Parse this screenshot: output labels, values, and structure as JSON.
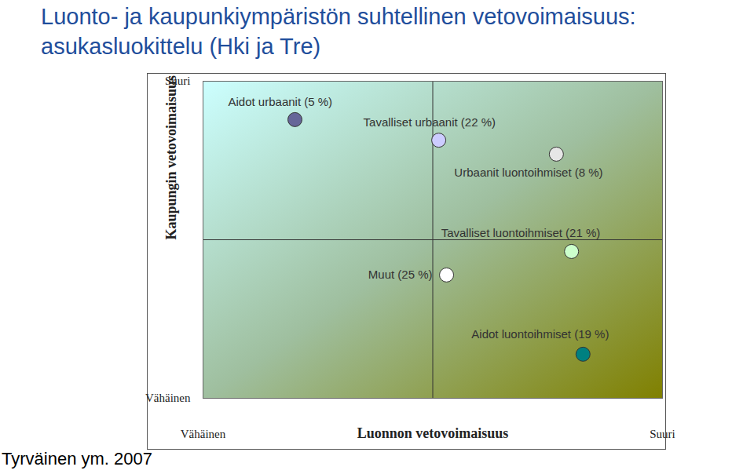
{
  "chart_data": {
    "type": "scatter",
    "title": "Luonto- ja kaupunkiympäristön suhtellinen vetovoimaisuus: asukasluokittelu (Hki ja Tre)",
    "source": "Tyrväinen ym. 2007",
    "x_label": "Luonnon vetovoimaisuus",
    "y_label": "Kaupungin vetovoimaisuus",
    "labels": [
      "Aidot urbaanit (5 %)",
      "Tavalliset urbaanit (22 %)",
      "Urbaanit luontoihmiset (8 %)",
      "Tavalliset luontoihmiset (21 %)",
      "Muut (25 %)",
      "Aidot luontoihmiset (19 %)"
    ],
    "x": [
      2.0,
      5.13,
      7.69,
      8.02,
      5.3,
      8.27
    ],
    "values": [
      8.79,
      8.14,
      7.7,
      4.63,
      3.89,
      1.39
    ],
    "colors": [
      "#666699",
      "#ccccff",
      "#e6e6e6",
      "#ccffcc",
      "#ffffff",
      "#008080"
    ],
    "xlim": [
      0,
      10
    ],
    "ylim": [
      0,
      10
    ],
    "xticks": [
      {
        "value": 0,
        "label": "Vähäinen"
      },
      {
        "value": 10,
        "label": "Suuri"
      }
    ],
    "yticks": [
      {
        "value": 0,
        "label": "Vähäinen"
      },
      {
        "value": 10,
        "label": "Suuri"
      }
    ],
    "grid": false,
    "marker": "circle"
  }
}
